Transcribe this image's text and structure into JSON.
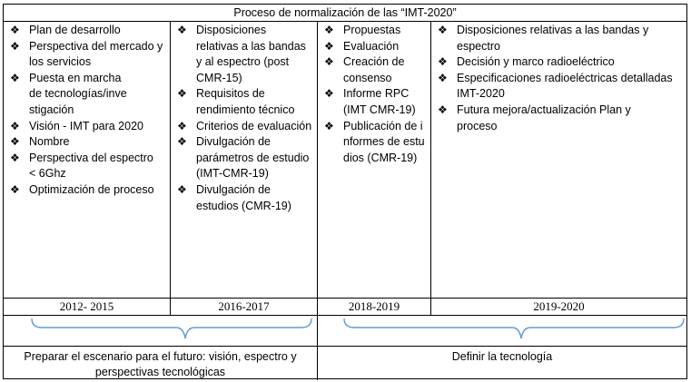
{
  "title": "Proceso de normalización de las “IMT-2020”",
  "bullet_glyph": "❖",
  "columns": [
    {
      "items": [
        "Plan de desarrollo",
        "Perspectiva del mercado y los servicios",
        "Puesta en marcha de tecnologías/investigación",
        "Visión - IMT para 2020",
        "Nombre",
        "Perspectiva del espectro < 6Ghz",
        "Optimización de proceso"
      ],
      "period": "2012- 2015"
    },
    {
      "items": [
        "Disposiciones relativas a las bandas y al espectro (post CMR-15)",
        "Requisitos de rendimiento técnico",
        "Criterios de evaluación",
        "Divulgación de parámetros de estudio (IMT-CMR-19)",
        "Divulgación de estudios (CMR-19)"
      ],
      "period": "2016-2017"
    },
    {
      "items": [
        "Propuestas",
        "Evaluación",
        "Creación de consenso",
        "Informe RPC (IMT CMR-19)",
        "Publicación de informes de estudios (CMR-19)"
      ],
      "period": "2018-2019"
    },
    {
      "items": [
        "Disposiciones relativas a las bandas y espectro",
        "Decisión y marco radioeléctrico",
        "Especificaciones radioeléctricas detalladas IMT-2020",
        "Futura mejora/actualización Plan y proceso"
      ],
      "period": "2019-2020"
    }
  ],
  "phases": [
    "Preparar el escenario para el futuro: visión, espectro y perspectivas tecnológicas",
    "Definir la tecnología"
  ]
}
